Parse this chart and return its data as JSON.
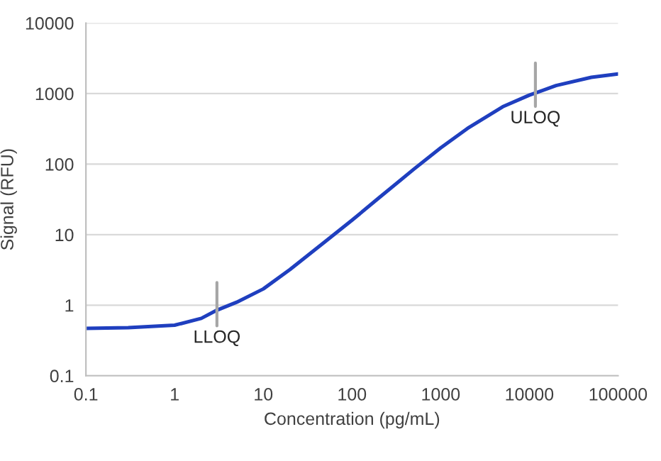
{
  "chart_data": {
    "type": "line",
    "xlabel": "Concentration (pg/mL)",
    "ylabel": "Signal (RFU)",
    "log": "xy",
    "grid": "y",
    "marker": "none",
    "line_style": "solid",
    "xlim": [
      0.1,
      100000
    ],
    "ylim": [
      0.1,
      10000
    ],
    "xticks": [
      {
        "value": 0.1,
        "label": "0.1"
      },
      1,
      10,
      100,
      1000,
      10000,
      100000
    ],
    "yticks": [
      {
        "value": 0.1,
        "label": "0.1"
      },
      1,
      10,
      100,
      1000,
      10000
    ],
    "x": [
      0.1,
      0.3,
      1,
      2,
      3,
      5,
      10,
      20,
      50,
      100,
      200,
      500,
      1000,
      2000,
      5000,
      10000,
      20000,
      50000,
      100000
    ],
    "series": [
      {
        "color": "#1f3fbf",
        "values": [
          0.47,
          0.48,
          0.52,
          0.65,
          0.85,
          1.1,
          1.7,
          3.2,
          8,
          16,
          33,
          85,
          170,
          320,
          650,
          950,
          1300,
          1700,
          1900
        ]
      }
    ],
    "annotations": [
      {
        "text": "LLOQ",
        "x": 3,
        "y": 0.85
      },
      {
        "text": "ULOQ",
        "x": 11700,
        "y": 1100
      }
    ]
  }
}
